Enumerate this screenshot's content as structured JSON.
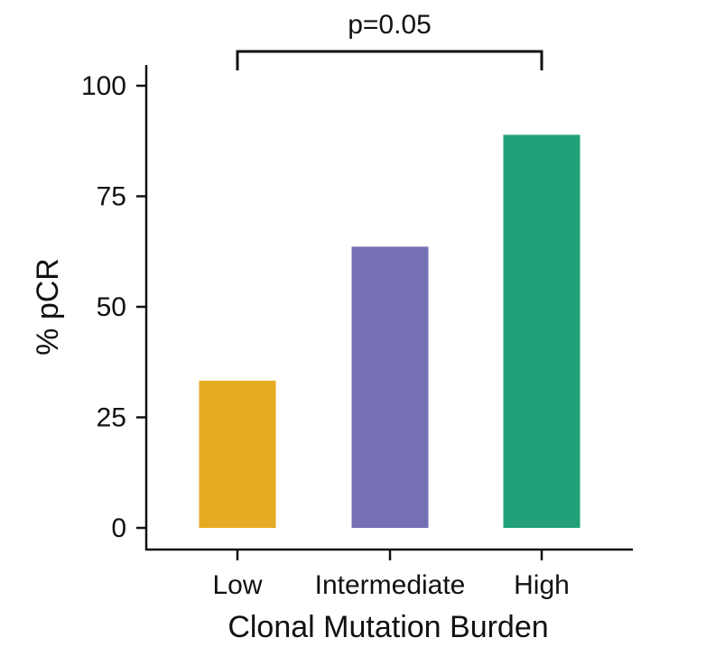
{
  "chart_data": {
    "type": "bar",
    "categories": [
      "Low",
      "Intermediate",
      "High"
    ],
    "values": [
      33.3,
      63.6,
      88.9
    ],
    "colors": [
      "#E5AB22",
      "#7570B3",
      "#21A07A"
    ],
    "title": "",
    "xlabel": "Clonal Mutation Burden",
    "ylabel": "% pCR",
    "ylim": [
      0,
      100
    ],
    "yticks": [
      0,
      25,
      50,
      75,
      100
    ],
    "ytick_labels": [
      "0",
      "25",
      "50",
      "75",
      "100"
    ],
    "grid": false,
    "legend": "none",
    "annotations": [
      {
        "type": "significance-bracket",
        "from": "Low",
        "to": "High",
        "text": "p=0.05"
      }
    ]
  }
}
